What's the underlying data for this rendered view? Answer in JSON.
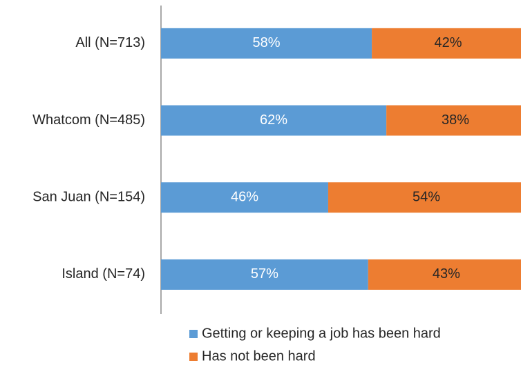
{
  "chart_data": {
    "type": "stacked_bar_horizontal",
    "categories": [
      "All (N=713)",
      "Whatcom (N=485)",
      "San Juan (N=154)",
      "Island (N=74)"
    ],
    "series": [
      {
        "name": "Getting or keeping a job has been hard",
        "color": "#5b9bd5",
        "label_color": "#ffffff",
        "values": [
          58,
          62,
          46,
          57
        ],
        "value_labels": [
          "58%",
          "62%",
          "46%",
          "57%"
        ]
      },
      {
        "name": "Has not been hard",
        "color": "#ed7d31",
        "label_color": "#262626",
        "values": [
          42,
          38,
          54,
          43
        ],
        "value_labels": [
          "42%",
          "38%",
          "54%",
          "43%"
        ]
      }
    ],
    "xlim": [
      0,
      100
    ],
    "legend": "bottom"
  }
}
